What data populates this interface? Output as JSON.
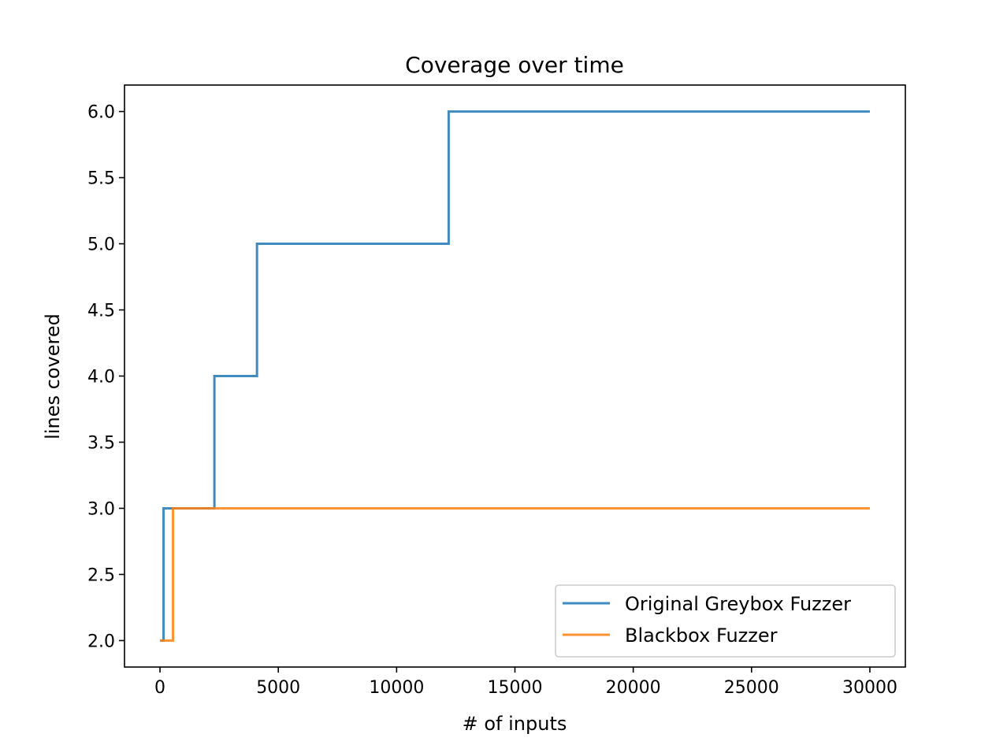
{
  "chart_data": {
    "type": "line",
    "title": "Coverage over time",
    "xlabel": "# of inputs",
    "ylabel": "lines covered",
    "xlim": [
      -1500,
      31500
    ],
    "ylim": [
      1.8,
      6.2
    ],
    "xticks": [
      0,
      5000,
      10000,
      15000,
      20000,
      25000,
      30000
    ],
    "xtick_labels": [
      "0",
      "5000",
      "10000",
      "15000",
      "20000",
      "25000",
      "30000"
    ],
    "yticks": [
      2.0,
      2.5,
      3.0,
      3.5,
      4.0,
      4.5,
      5.0,
      5.5,
      6.0
    ],
    "ytick_labels": [
      "2.0",
      "2.5",
      "3.0",
      "3.5",
      "4.0",
      "4.5",
      "5.0",
      "5.5",
      "6.0"
    ],
    "grid": false,
    "legend_position": "lower-right",
    "series": [
      {
        "name": "Original Greybox Fuzzer",
        "color": "#1f77b4",
        "step": true,
        "x": [
          0,
          150,
          2300,
          4100,
          12200,
          30000
        ],
        "y": [
          2,
          3,
          4,
          5,
          6,
          6
        ]
      },
      {
        "name": "Blackbox Fuzzer",
        "color": "#ff7f0e",
        "step": true,
        "x": [
          0,
          550,
          30000
        ],
        "y": [
          2,
          3,
          3
        ]
      }
    ]
  }
}
